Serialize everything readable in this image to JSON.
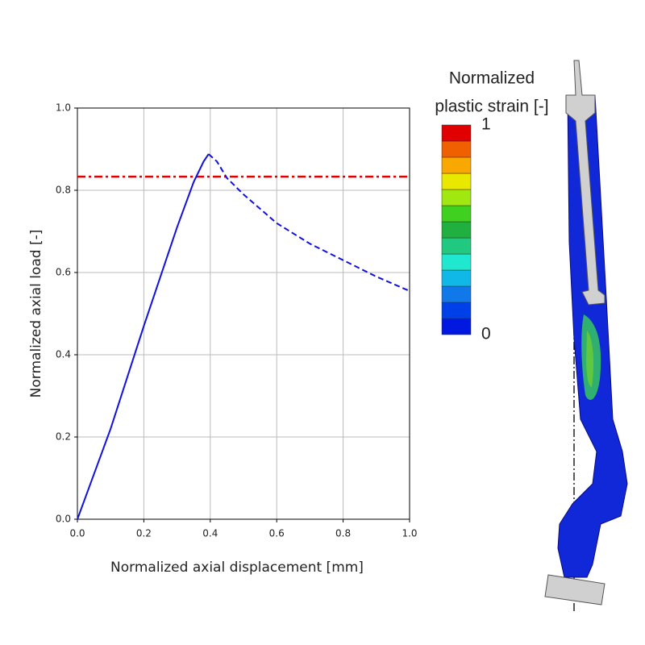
{
  "chart_data": {
    "type": "line",
    "xlabel": "Normalized axial displacement [mm]",
    "ylabel": "Normalized axial load [-]",
    "xlim": [
      0,
      1
    ],
    "ylim": [
      0,
      1
    ],
    "xticks": [
      {
        "value": 0,
        "label": "0.0"
      },
      {
        "value": 0.2,
        "label": "0.2"
      },
      {
        "value": 0.4,
        "label": "0.4"
      },
      {
        "value": 0.6,
        "label": "0.6"
      },
      {
        "value": 0.8,
        "label": "0.8"
      },
      {
        "value": 1,
        "label": "1.0"
      }
    ],
    "yticks": [
      {
        "value": 0,
        "label": "0.0"
      },
      {
        "value": 0.2,
        "label": "0.2"
      },
      {
        "value": 0.4,
        "label": "0.4"
      },
      {
        "value": 0.6,
        "label": "0.6"
      },
      {
        "value": 0.8,
        "label": "0.8"
      },
      {
        "value": 1,
        "label": "1.0"
      }
    ],
    "grid": true,
    "series": [
      {
        "color": "#1010e0",
        "linestyle": "solid",
        "x": [
          0,
          0.1,
          0.2,
          0.3,
          0.35,
          0.38,
          0.395
        ],
        "values": [
          0,
          0.22,
          0.47,
          0.71,
          0.82,
          0.87,
          0.888
        ]
      },
      {
        "color": "#1010e0",
        "linestyle": "dashed",
        "x": [
          0.395,
          0.42,
          0.45,
          0.5,
          0.6,
          0.7,
          0.8,
          0.9,
          1
        ],
        "values": [
          0.888,
          0.87,
          0.83,
          0.79,
          0.72,
          0.67,
          0.63,
          0.59,
          0.555
        ]
      }
    ],
    "hlines": [
      {
        "value": 0.833,
        "color": "#e00000",
        "linestyle": "dashdot"
      }
    ],
    "colorbar": {
      "title": [
        "Normalized",
        "plastic strain [-]"
      ],
      "ticks": [
        0,
        1
      ],
      "colors": [
        "#0018e0",
        "#0040e8",
        "#1078e8",
        "#10b8e8",
        "#20e8d0",
        "#20c880",
        "#20b040",
        "#40d020",
        "#a0e810",
        "#e8e800",
        "#f8a800",
        "#f06000",
        "#e00000"
      ]
    }
  }
}
